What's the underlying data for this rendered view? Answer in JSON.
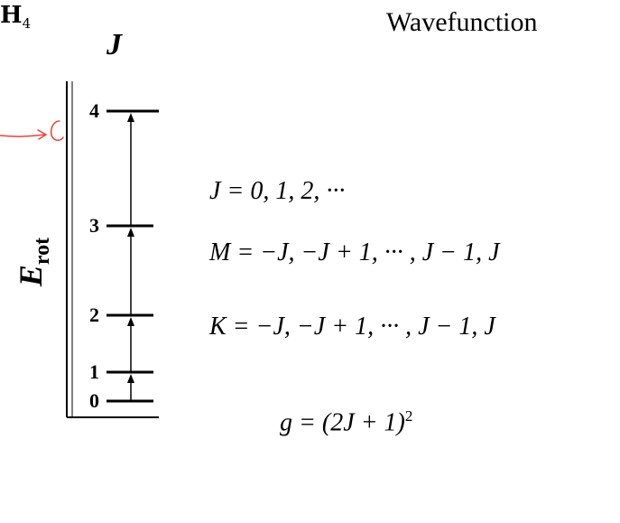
{
  "header": {
    "base": "H",
    "subscript": "4"
  },
  "title": "Wavefunction",
  "diagram": {
    "axis_label": "E",
    "axis_label_sub": "rot",
    "level_axis_label": "J",
    "levels": [
      {
        "label": "0"
      },
      {
        "label": "1"
      },
      {
        "label": "2"
      },
      {
        "label": "3"
      },
      {
        "label": "4"
      }
    ],
    "annotation_color": "#e8453c"
  },
  "equations": {
    "j_values": "J = 0, 1, 2, ···",
    "m_values": "M = −J, −J + 1, ··· , J − 1, J",
    "k_values": "K = −J, −J + 1, ··· , J − 1, J",
    "degeneracy": "g = (2J + 1)",
    "degeneracy_exp": "2"
  }
}
